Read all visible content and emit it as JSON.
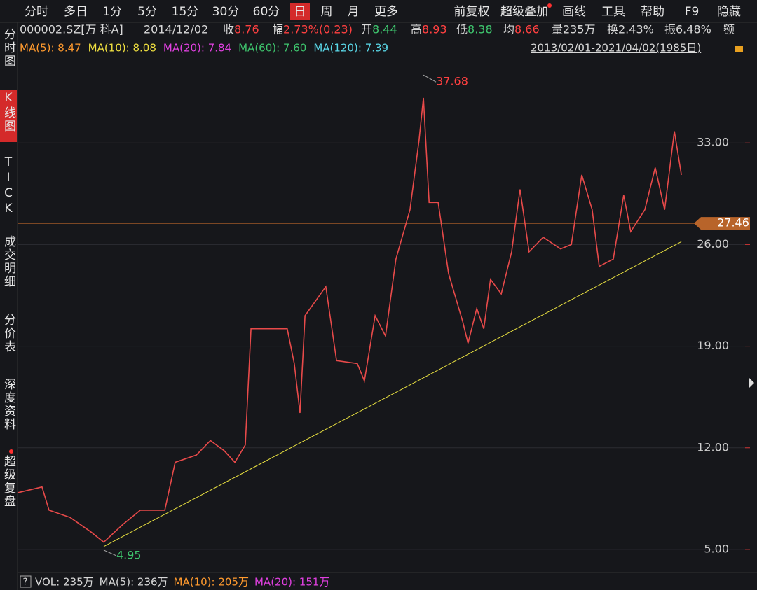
{
  "toolbar": {
    "tabs": [
      "分时",
      "多日",
      "1分",
      "5分",
      "15分",
      "30分",
      "60分",
      "日",
      "周",
      "月",
      "更多"
    ],
    "active": "日",
    "tools": [
      "前复权",
      "超级叠加",
      "画线",
      "工具",
      "帮助",
      "F9",
      "隐藏"
    ]
  },
  "sidebar": [
    {
      "label": "分时图",
      "active": false
    },
    {
      "label": "K线图",
      "active": true
    },
    {
      "label": "TICK",
      "active": false
    },
    {
      "label": "成交明细",
      "active": false
    },
    {
      "label": "分价表",
      "active": false
    },
    {
      "label": "深度资料",
      "active": false
    },
    {
      "label": "超级复盘",
      "active": false
    }
  ],
  "info": {
    "symbol": "000002.SZ[万 科A]",
    "date": "2014/12/02",
    "items": [
      {
        "label": "收",
        "value": 8.76,
        "color": "#ff4040"
      },
      {
        "label": "幅",
        "value": "2.73%(0.23)",
        "color": "#ff4040"
      },
      {
        "label": "开",
        "value": 8.44,
        "color": "#3ec46d"
      },
      {
        "label": "高",
        "value": 8.93,
        "color": "#ff4040"
      },
      {
        "label": "低",
        "value": 8.38,
        "color": "#3ec46d"
      },
      {
        "label": "均",
        "value": 8.66,
        "color": "#ff4040"
      },
      {
        "label": "量235万",
        "value": null,
        "color": "#d8d8d8"
      },
      {
        "label": "换2.43%",
        "value": null,
        "color": "#d8d8d8"
      },
      {
        "label": "振6.48%",
        "value": null,
        "color": "#d8d8d8"
      },
      {
        "label": "额",
        "value": null,
        "color": "#d8d8d8"
      }
    ]
  },
  "ma_legend": [
    {
      "text": "MA(5): 8.47",
      "color": "#ff9a2e"
    },
    {
      "text": "MA(10): 8.08",
      "color": "#f0e040"
    },
    {
      "text": "MA(20): 7.84",
      "color": "#e040e0"
    },
    {
      "text": "MA(60): 7.60",
      "color": "#3ec46d"
    },
    {
      "text": "MA(120): 7.39",
      "color": "#5ad8e8"
    }
  ],
  "date_range": "2013/02/01-2021/04/02(1985日)",
  "chart_data": {
    "type": "line",
    "x": [
      0,
      73,
      94,
      157,
      219,
      257,
      313,
      366,
      439,
      470,
      533,
      575,
      616,
      648,
      679,
      696,
      804,
      825,
      842,
      857,
      888,
      919,
      951,
      1013,
      1034,
      1066,
      1097,
      1128,
      1170,
      1197,
      1210,
      1227,
      1254,
      1285,
      1327,
      1343,
      1369,
      1390,
      1410,
      1442,
      1473,
      1498,
      1525,
      1567,
      1619,
      1651,
      1682,
      1713,
      1734,
      1776,
      1807,
      1828,
      1870,
      1901,
      1929,
      1958,
      1979
    ],
    "series": [
      {
        "color": "#e84a4a",
        "values": [
          8.9,
          9.3,
          7.7,
          7.2,
          6.2,
          5.5,
          6.7,
          7.7,
          7.7,
          11.0,
          11.5,
          12.5,
          11.8,
          11.0,
          12.2,
          20.2,
          20.2,
          17.8,
          14.4,
          21.1,
          22.1,
          23.1,
          18.0,
          17.8,
          16.6,
          21.1,
          19.7,
          25.0,
          28.4,
          33.2,
          36.1,
          28.9,
          28.9,
          24.0,
          20.7,
          19.2,
          21.6,
          20.2,
          23.6,
          22.6,
          25.5,
          29.8,
          25.5,
          26.5,
          25.7,
          26.0,
          30.8,
          28.4,
          24.5,
          25.0,
          29.4,
          26.9,
          28.4,
          31.3,
          28.4,
          33.8,
          30.8
        ]
      }
    ],
    "xlim": [
      0,
      1985
    ],
    "ylim": [
      3.55,
      38.75
    ],
    "yticks": [
      {
        "value": 5,
        "label": "5.00"
      },
      {
        "value": 12,
        "label": "12.00"
      },
      {
        "value": 19,
        "label": "19.00"
      },
      {
        "value": 26,
        "label": "26.00"
      },
      {
        "value": 33,
        "label": "33.00"
      }
    ],
    "grid": true,
    "current_price": 27.46,
    "trendline": {
      "x": [
        257,
        1979
      ],
      "values": [
        5.2,
        26.2
      ],
      "color": "#e8e040"
    },
    "annotations": [
      {
        "x": 1210,
        "value": 37.68,
        "color": "#ff4040"
      },
      {
        "x": 257,
        "value": 4.95,
        "color": "#3ec46d"
      }
    ]
  },
  "volume": [
    {
      "text": "VOL: 235万",
      "color": "#d8d8d8"
    },
    {
      "text": "MA(5): 236万",
      "color": "#d8d8d8"
    },
    {
      "text": "MA(10): 205万",
      "color": "#ff9a2e"
    },
    {
      "text": "MA(20): 151万",
      "color": "#e040e0"
    }
  ]
}
